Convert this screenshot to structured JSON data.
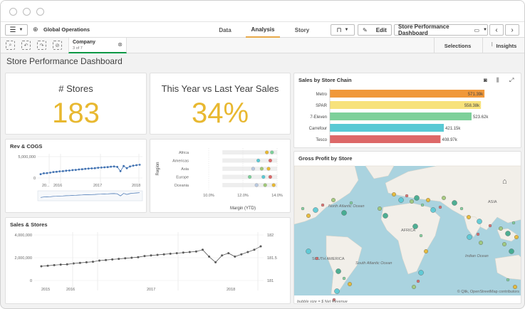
{
  "app": {
    "title": "Global Operations",
    "tabs": [
      {
        "label": "Data",
        "active": false
      },
      {
        "label": "Analysis",
        "active": true
      },
      {
        "label": "Story",
        "active": false
      }
    ],
    "edit_label": "Edit",
    "sheet_selector": "Store Performance Dashboard",
    "prev_icon": "chevron-left-icon",
    "next_icon": "chevron-right-icon"
  },
  "selections_bar": {
    "field": "Company",
    "count": "3 of 7",
    "selections_label": "Selections",
    "insights_label": "Insights"
  },
  "sheet": {
    "title": "Store Performance Dashboard"
  },
  "kpi_stores": {
    "title": "# Stores",
    "value": "183"
  },
  "kpi_sales": {
    "title": "This Year vs Last Year Sales",
    "value": "34%"
  },
  "colors": {
    "accent": "#e8a94a",
    "kpi": "#e8b830",
    "green_tab": "#009845",
    "line": "#3d6fb0",
    "grey_line": "#595959",
    "ocean": "#aad3df",
    "land": "#f2efe9"
  },
  "chart_data": [
    {
      "type": "bar",
      "title": "Sales by Store Chain",
      "orientation": "horizontal",
      "categories": [
        "Metro",
        "SPAR",
        "7-Eleven",
        "Carrefour",
        "Tesco"
      ],
      "values": [
        571.39,
        558.38,
        523.62,
        421.15,
        408.97
      ],
      "value_labels": [
        "571.39k",
        "558.38k",
        "523.62k",
        "421.15k",
        "408.97k"
      ],
      "colors": [
        "#f0983a",
        "#f7e27c",
        "#7dd09a",
        "#59c9d4",
        "#dd6868"
      ],
      "xlim": [
        0,
        600
      ]
    },
    {
      "type": "line",
      "title": "Rev & COGS",
      "y_ticks": [
        "5,000,000",
        "0"
      ],
      "x_ticks": [
        "20...",
        "2016",
        "2017",
        "2018"
      ],
      "values": [
        0.9,
        1.1,
        1.15,
        1.25,
        1.4,
        1.45,
        1.55,
        1.6,
        1.7,
        1.75,
        1.85,
        1.9,
        2.0,
        2.05,
        2.15,
        2.2,
        2.25,
        2.3,
        2.4,
        2.45,
        2.5,
        2.55,
        2.65,
        2.7,
        2.6,
        1.6,
        2.8,
        2.3,
        2.7,
        2.9,
        3.0,
        3.1
      ]
    },
    {
      "type": "scatter",
      "xlabel": "Margin (YTD)",
      "ylabel": "Region",
      "categories": [
        "Africa",
        "Americas",
        "Asia",
        "Europe",
        "Oceania"
      ],
      "x_ticks": [
        "10.0%",
        "12.0%",
        "14.0%"
      ],
      "xlim": [
        9,
        14.5
      ],
      "points": [
        {
          "region": "Africa",
          "x": 13.4
        },
        {
          "region": "Africa",
          "x": 13.7
        },
        {
          "region": "Americas",
          "x": 12.9
        },
        {
          "region": "Americas",
          "x": 13.6
        },
        {
          "region": "Asia",
          "x": 12.6
        },
        {
          "region": "Asia",
          "x": 13.1
        },
        {
          "region": "Asia",
          "x": 13.5
        },
        {
          "region": "Europe",
          "x": 12.4
        },
        {
          "region": "Europe",
          "x": 13.2
        },
        {
          "region": "Europe",
          "x": 13.6
        },
        {
          "region": "Oceania",
          "x": 12.8
        },
        {
          "region": "Oceania",
          "x": 13.3
        },
        {
          "region": "Oceania",
          "x": 13.8
        }
      ]
    },
    {
      "type": "line",
      "title": "Sales & Stores",
      "y_ticks_left": [
        "4,000,000",
        "2,000,000",
        "0"
      ],
      "y_ticks_right": [
        "182",
        "181.5",
        "181"
      ],
      "x_ticks": [
        "2015",
        "2016",
        "2017",
        "2018"
      ],
      "values": [
        1.25,
        1.3,
        1.35,
        1.4,
        1.42,
        1.5,
        1.55,
        1.6,
        1.65,
        1.75,
        1.8,
        1.85,
        1.9,
        1.95,
        2.0,
        2.05,
        2.15,
        2.2,
        2.25,
        2.3,
        2.35,
        2.4,
        2.45,
        2.5,
        2.55,
        2.7,
        2.1,
        1.6,
        2.2,
        2.4,
        2.1,
        2.3,
        2.5,
        2.7,
        3.0
      ]
    }
  ],
  "map": {
    "title": "Gross Profit by Store",
    "labels": [
      "North Atlantic Ocean",
      "AFRICA",
      "SOUTH AMERICA",
      "South Atlantic Ocean",
      "Indian Ocean",
      "ASIA"
    ],
    "footer": "bubble size = $ Net Revenue",
    "attribution": "© Qlik, OpenStreetMap contributors"
  }
}
